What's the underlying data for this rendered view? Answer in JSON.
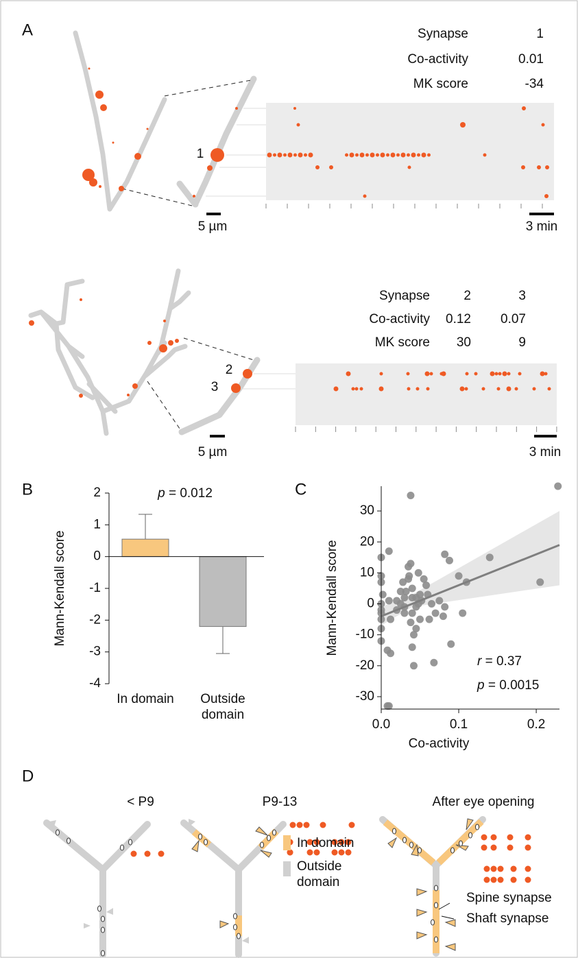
{
  "panel_labels": [
    "A",
    "B",
    "C",
    "D"
  ],
  "panel_a": {
    "top": {
      "table": {
        "rows": [
          [
            "Synapse",
            "1"
          ],
          [
            "Co-activity",
            "0.01"
          ],
          [
            "MK score",
            "-34"
          ]
        ]
      },
      "synapse_labels": [
        "1"
      ],
      "scale_space": "5 µm",
      "scale_time": "3 min"
    },
    "bottom": {
      "table": {
        "rows": [
          [
            "Synapse",
            "2",
            "3"
          ],
          [
            "Co-activity",
            "0.12",
            "0.07"
          ],
          [
            "MK score",
            "30",
            "9"
          ]
        ]
      },
      "synapse_labels": [
        "2",
        "3"
      ],
      "scale_space": "5 µm",
      "scale_time": "3 min"
    }
  },
  "chart_data": [
    {
      "type": "bar",
      "annotation": "p = 0.012",
      "y_label": "Mann-Kendall score",
      "categories": [
        "In domain",
        "Outside domain"
      ],
      "values": [
        0.55,
        -2.2
      ],
      "errors": [
        0.78,
        0.85
      ],
      "colors": [
        "#f8c77e",
        "#bdbdbd"
      ],
      "ylim": [
        -4,
        2
      ],
      "yticks": [
        -4,
        -3,
        -2,
        -1,
        0,
        1,
        2
      ]
    },
    {
      "type": "scatter",
      "x_label": "Co-activity",
      "y_label": "Mann-Kendall score",
      "annotations": [
        "r = 0.37",
        "p = 0.0015"
      ],
      "color": "#8c8c8c",
      "x": [
        0.038,
        0.228,
        0.01,
        0,
        0,
        0,
        0.002,
        0,
        0,
        0,
        0,
        0,
        0,
        0.008,
        0.012,
        0.008,
        0.01,
        0.01,
        0.012,
        0.02,
        0.025,
        0.028,
        0.03,
        0.03,
        0.032,
        0.035,
        0.035,
        0.038,
        0.036,
        0.04,
        0.04,
        0.04,
        0.038,
        0.042,
        0.04,
        0.042,
        0.045,
        0.045,
        0.048,
        0.05,
        0.052,
        0.055,
        0.058,
        0.06,
        0.062,
        0.065,
        0.068,
        0.07,
        0.075,
        0.08,
        0.082,
        0.082,
        0.088,
        0.09,
        0.1,
        0.105,
        0.11,
        0.14,
        0.205,
        0.045,
        0.025,
        0.03,
        0.05,
        0.02,
        0.048
      ],
      "values": [
        35,
        38,
        17,
        15,
        9,
        7,
        3,
        0,
        -2,
        -3,
        -5,
        -8,
        -12,
        -15,
        -16,
        -33,
        -33,
        1,
        -5,
        1,
        4,
        7,
        2,
        -1,
        4,
        8,
        12,
        13,
        9,
        5,
        2,
        -3,
        -6,
        -10,
        -14,
        -20,
        -8,
        -1,
        10,
        3,
        1,
        8,
        6,
        3,
        -5,
        0,
        -19,
        -3,
        1,
        -4,
        -1,
        16,
        14,
        -13,
        9,
        -3,
        7,
        15,
        7,
        2,
        0,
        -3,
        -5,
        -2,
        0
      ],
      "fit": {
        "x": [
          0,
          0.23
        ],
        "values": [
          -4,
          19
        ],
        "color": "#7f7f7f"
      },
      "band": {
        "x": [
          0,
          0.04,
          0.23
        ],
        "lower": [
          -7,
          -1,
          6
        ],
        "upper": [
          -1,
          3,
          30
        ],
        "color": "#e6e6e6"
      },
      "xlim": [
        0,
        0.23
      ],
      "ylim": [
        -34,
        38
      ],
      "xticks": [
        {
          "value": 0,
          "label": "0.0"
        },
        {
          "value": 0.1,
          "label": "0.1"
        },
        {
          "value": 0.2,
          "label": "0.2"
        }
      ],
      "yticks": [
        -30,
        -20,
        -10,
        0,
        10,
        20,
        30
      ]
    }
  ],
  "panel_d": {
    "stages": [
      "< P9",
      "P9-13",
      "After eye opening"
    ],
    "legend": [
      "In domain",
      "Outside domain"
    ],
    "annotations": [
      "Spine synapse",
      "Shaft synapse"
    ]
  }
}
